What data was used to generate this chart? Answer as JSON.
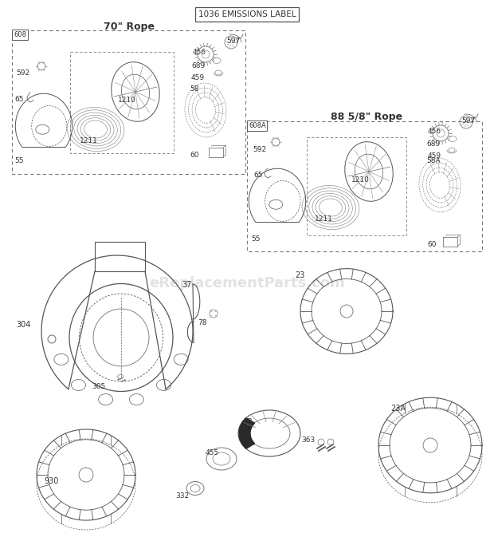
{
  "title": "1036 EMISSIONS LABEL",
  "watermark": "eReplacementParts.com",
  "bg_color": "#ffffff",
  "line_color": "#555555",
  "text_color": "#333333",
  "box1_title": "70\" Rope",
  "box2_title": "88 5/8\" Rope",
  "box1_label": "608",
  "box2_label": "608A",
  "lw_main": 0.8,
  "lw_thin": 0.5,
  "lw_thick": 1.0
}
